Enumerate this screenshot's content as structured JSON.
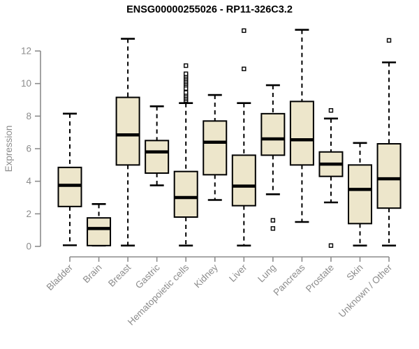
{
  "title": "ENSG00000255026 - RP11-326C3.2",
  "chart_data": {
    "type": "boxplot",
    "title": "ENSG00000255026 - RP11-326C3.2",
    "xlabel": "",
    "ylabel": "Expression",
    "ylim": [
      0,
      13.6
    ],
    "yticks": [
      0,
      2,
      4,
      6,
      8,
      10,
      12
    ],
    "grid": false,
    "legend": "none",
    "categories": [
      "Bladder",
      "Brain",
      "Breast",
      "Gastric",
      "Hematopoietic cells",
      "Kidney",
      "Liver",
      "Lung",
      "Pancreas",
      "Prostate",
      "Skin",
      "Unknown / Other"
    ],
    "boxes": [
      {
        "label": "Bladder",
        "low": 0.07,
        "q1": 2.45,
        "median": 3.75,
        "q3": 4.85,
        "high": 8.15,
        "outliers": []
      },
      {
        "label": "Brain",
        "low": 0.05,
        "q1": 0.05,
        "median": 1.1,
        "q3": 1.75,
        "high": 2.6,
        "outliers": []
      },
      {
        "label": "Breast",
        "low": 0.05,
        "q1": 5.0,
        "median": 6.85,
        "q3": 9.15,
        "high": 12.75,
        "outliers": []
      },
      {
        "label": "Gastric",
        "low": 3.75,
        "q1": 4.5,
        "median": 5.8,
        "q3": 6.5,
        "high": 8.6,
        "outliers": []
      },
      {
        "label": "Hematopoietic cells",
        "low": 0.05,
        "q1": 1.8,
        "median": 3.0,
        "q3": 4.6,
        "high": 8.8,
        "outliers": [
          8.95,
          9.05,
          9.15,
          9.25,
          9.35,
          9.45,
          9.7,
          9.9,
          10.0,
          10.1,
          10.2,
          10.3,
          10.4,
          10.5,
          10.6,
          11.1
        ]
      },
      {
        "label": "Kidney",
        "low": 2.85,
        "q1": 4.4,
        "median": 6.4,
        "q3": 7.7,
        "high": 9.3,
        "outliers": []
      },
      {
        "label": "Liver",
        "low": 0.05,
        "q1": 2.5,
        "median": 3.7,
        "q3": 5.6,
        "high": 8.8,
        "outliers": [
          10.9,
          13.25
        ]
      },
      {
        "label": "Lung",
        "low": 3.2,
        "q1": 5.6,
        "median": 6.6,
        "q3": 8.15,
        "high": 9.9,
        "outliers": [
          1.1,
          1.6
        ]
      },
      {
        "label": "Pancreas",
        "low": 1.5,
        "q1": 5.0,
        "median": 6.55,
        "q3": 8.9,
        "high": 13.3,
        "outliers": []
      },
      {
        "label": "Prostate",
        "low": 2.7,
        "q1": 4.3,
        "median": 5.05,
        "q3": 5.8,
        "high": 7.85,
        "outliers": [
          0.05,
          8.35
        ]
      },
      {
        "label": "Skin",
        "low": 0.05,
        "q1": 1.4,
        "median": 3.5,
        "q3": 5.0,
        "high": 6.35,
        "outliers": []
      },
      {
        "label": "Unknown / Other",
        "low": 0.05,
        "q1": 2.35,
        "median": 4.15,
        "q3": 6.3,
        "high": 11.3,
        "outliers": [
          12.65
        ]
      }
    ],
    "colors": {
      "box_fill": "#EDE6CB",
      "box_stroke": "#000000",
      "median": "#000000",
      "whisker": "#000000",
      "outlier_fill": "#FFFFFF",
      "axis": "#8C8C8C",
      "tick_label": "#8C8C8C",
      "title": "#000000",
      "background": "#FFFFFF"
    }
  }
}
